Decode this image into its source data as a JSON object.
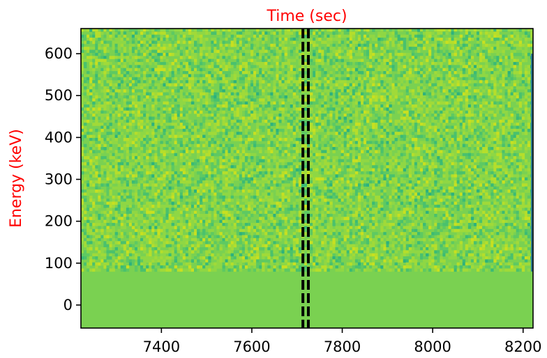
{
  "chart_data": {
    "type": "heatmap",
    "title": "",
    "xlabel": "Time (sec)",
    "ylabel": "Energy (keV)",
    "label_color": "#ff0000",
    "xlim": [
      7222,
      8222
    ],
    "ylim": [
      -55,
      660
    ],
    "x_ticks": [
      7400,
      7600,
      7800,
      8000,
      8200
    ],
    "x_tick_labels": [
      "7400",
      "7600",
      "7800",
      "8000",
      "8200"
    ],
    "y_ticks": [
      0,
      100,
      200,
      300,
      400,
      500,
      600
    ],
    "y_tick_labels": [
      "0",
      "100",
      "200",
      "300",
      "400",
      "500",
      "600"
    ],
    "colormap": "viridis",
    "background_color": "#7ad151",
    "noise_floor_energy_keV": 80,
    "noise_colors": [
      "#7ad151",
      "#8fd744",
      "#a0da39",
      "#b5de2b",
      "#c8e020",
      "#5ec962",
      "#4ac16d",
      "#3bbb75",
      "#2db27d"
    ],
    "event_markers": [
      {
        "x": 7713,
        "style": "dashed",
        "color": "#000000"
      },
      {
        "x": 7725,
        "style": "dashed",
        "color": "#000000"
      }
    ],
    "edge_strip_color": "#2a788e",
    "grid": false
  }
}
